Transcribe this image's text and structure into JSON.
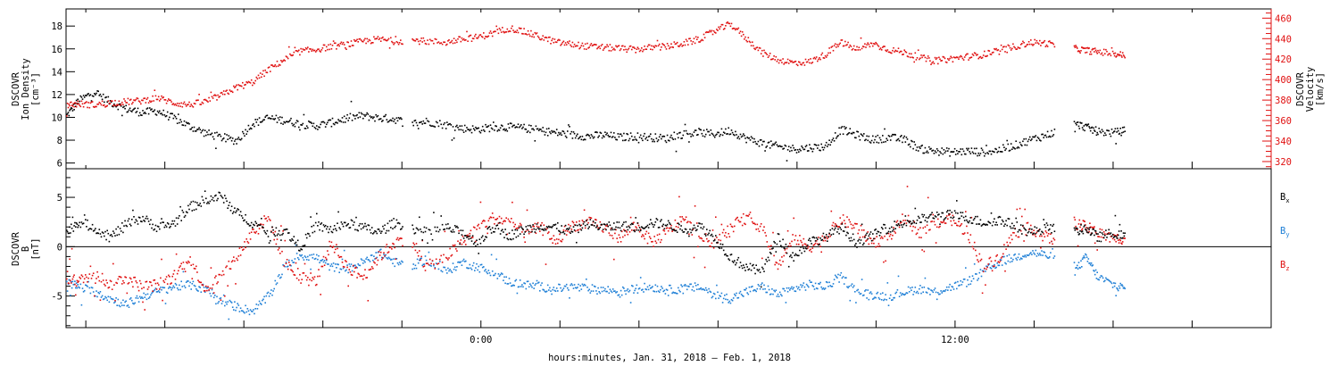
{
  "chart_data": [
    {
      "type": "scatter",
      "panel": "plasma",
      "ylabel": [
        "DSCOVR",
        "Ion Density",
        "[cm⁻³]"
      ],
      "ylim": [
        5.5,
        19.5
      ],
      "yticks": [
        6,
        8,
        10,
        12,
        14,
        16,
        18
      ],
      "y2label": [
        "DSCOVR",
        "Velocity",
        "[km/s]"
      ],
      "y2lim": [
        313,
        469
      ],
      "y2ticks": [
        320,
        340,
        360,
        380,
        400,
        420,
        440,
        460
      ],
      "y2_color": "#e01010",
      "series": [
        {
          "axis": "left",
          "color": "#000000",
          "x": [
            -10.5,
            -10.2,
            -9.8,
            -9.4,
            -9.0,
            -8.6,
            -8.2,
            -7.8,
            -7.4,
            -7.0,
            -6.6,
            -6.2,
            -5.8,
            -5.4,
            -5.0,
            -4.6,
            -4.2,
            -3.8,
            -3.4,
            -3.0,
            -2.6,
            -2.2,
            -1.8,
            -1.4,
            -0.9,
            -0.5,
            -0.1,
            0.3,
            0.7,
            1.1,
            1.5,
            1.9,
            2.3,
            2.7,
            3.1,
            3.5,
            3.9,
            4.3,
            4.7,
            5.1,
            5.5,
            5.9,
            6.3,
            6.7,
            7.1,
            7.5,
            7.9,
            8.3,
            8.7,
            9.1,
            9.5,
            9.9,
            10.3,
            10.7,
            11.1,
            11.5,
            11.9,
            12.3,
            12.7,
            13.1,
            13.5,
            13.9,
            14.3,
            14.7,
            15.0,
            15.3,
            15.6,
            16.0,
            16.3
          ],
          "y": [
            10.2,
            11.5,
            12.3,
            11.4,
            10.8,
            10.5,
            10.6,
            10.0,
            9.3,
            8.7,
            8.3,
            8.0,
            9.5,
            10.0,
            9.8,
            9.5,
            9.3,
            9.6,
            10.0,
            10.2,
            10.0,
            9.9,
            9.5,
            9.7,
            9.4,
            9.1,
            9.0,
            9.2,
            9.2,
            9.1,
            8.9,
            8.7,
            8.5,
            8.4,
            8.5,
            8.3,
            8.4,
            8.3,
            8.2,
            8.6,
            8.7,
            8.6,
            8.9,
            8.2,
            7.8,
            7.5,
            7.3,
            7.4,
            7.5,
            9.0,
            8.5,
            8.1,
            8.3,
            8.1,
            7.3,
            7.1,
            7.0,
            7.1,
            7.0,
            7.2,
            7.6,
            8.1,
            8.5,
            9.0,
            9.5,
            9.2,
            8.8,
            8.7,
            8.9
          ]
        },
        {
          "axis": "right",
          "color": "#e01010",
          "x": [
            -10.5,
            -10.2,
            -9.8,
            -9.4,
            -9.0,
            -8.6,
            -8.2,
            -7.8,
            -7.4,
            -7.0,
            -6.6,
            -6.2,
            -5.8,
            -5.4,
            -5.0,
            -4.6,
            -4.2,
            -3.8,
            -3.4,
            -3.0,
            -2.6,
            -2.2,
            -1.8,
            -1.4,
            -0.9,
            -0.5,
            -0.1,
            0.3,
            0.7,
            1.1,
            1.5,
            1.9,
            2.3,
            2.7,
            3.1,
            3.5,
            3.9,
            4.3,
            4.7,
            5.1,
            5.5,
            5.9,
            6.3,
            6.7,
            7.1,
            7.5,
            7.9,
            8.3,
            8.7,
            9.1,
            9.5,
            9.9,
            10.3,
            10.7,
            11.1,
            11.5,
            11.9,
            12.3,
            12.7,
            13.1,
            13.5,
            13.9,
            14.3,
            14.7,
            15.0,
            15.3,
            15.6,
            16.0,
            16.3
          ],
          "y": [
            376,
            377,
            376,
            378,
            379,
            380,
            383,
            378,
            376,
            379,
            385,
            393,
            398,
            410,
            420,
            428,
            430,
            433,
            435,
            438,
            440,
            438,
            439,
            438,
            437,
            440,
            442,
            446,
            451,
            447,
            442,
            437,
            435,
            433,
            432,
            431,
            430,
            432,
            433,
            436,
            440,
            448,
            455,
            441,
            427,
            420,
            417,
            418,
            425,
            437,
            430,
            436,
            430,
            427,
            422,
            419,
            421,
            423,
            425,
            429,
            433,
            437,
            436,
            433,
            431,
            429,
            428,
            426,
            424
          ]
        }
      ]
    },
    {
      "type": "scatter",
      "panel": "magnetic-field",
      "ylabel": [
        "DSCOVR",
        "B",
        "[nT]"
      ],
      "ylim": [
        -8.2,
        7.9
      ],
      "yticks": [
        -5,
        0,
        5
      ],
      "xlabel": "hours:minutes, Jan. 31, 2018 – Feb.  1, 2018",
      "xlim": [
        -10.5,
        20.0
      ],
      "xticks": [
        -8,
        -6,
        -4,
        -2,
        0,
        2,
        4,
        6,
        8,
        10,
        12,
        14,
        16,
        18
      ],
      "xticklabels": [
        {
          "x": 0,
          "label": "0:00"
        },
        {
          "x": 12,
          "label": "12:00"
        }
      ],
      "series": [
        {
          "name": "Bx",
          "color": "#000000",
          "x": [
            -10.5,
            -10.2,
            -9.8,
            -9.4,
            -9.0,
            -8.6,
            -8.2,
            -7.8,
            -7.4,
            -7.0,
            -6.6,
            -6.2,
            -5.8,
            -5.4,
            -5.0,
            -4.6,
            -4.2,
            -3.8,
            -3.4,
            -3.0,
            -2.6,
            -2.2,
            -1.8,
            -1.4,
            -0.9,
            -0.5,
            -0.1,
            0.3,
            0.7,
            1.1,
            1.5,
            1.9,
            2.3,
            2.7,
            3.1,
            3.5,
            3.9,
            4.3,
            4.7,
            5.1,
            5.5,
            5.9,
            6.3,
            6.7,
            7.1,
            7.5,
            7.9,
            8.3,
            8.7,
            9.1,
            9.5,
            9.9,
            10.3,
            10.7,
            11.1,
            11.5,
            11.9,
            12.3,
            12.7,
            13.1,
            13.5,
            13.9,
            14.3,
            14.7,
            15.0,
            15.3,
            15.6,
            16.0,
            16.3
          ],
          "y": [
            1.5,
            2.6,
            2.0,
            1.0,
            2.3,
            3.0,
            2.0,
            2.4,
            4.0,
            4.8,
            5.2,
            3.5,
            2.5,
            1.5,
            1.8,
            0.0,
            2.2,
            1.8,
            2.4,
            2.0,
            1.5,
            2.5,
            2.0,
            1.5,
            2.0,
            1.5,
            0.5,
            2.0,
            1.2,
            1.8,
            2.2,
            2.0,
            1.6,
            2.4,
            2.0,
            2.2,
            2.0,
            2.5,
            2.3,
            1.8,
            2.2,
            1.0,
            -1.0,
            -2.0,
            -2.5,
            1.0,
            -1.0,
            0.5,
            1.0,
            2.0,
            0.5,
            1.2,
            2.0,
            2.5,
            2.8,
            3.2,
            3.3,
            3.0,
            2.5,
            2.8,
            2.2,
            1.5,
            2.0,
            2.2,
            1.5,
            2.0,
            1.0,
            1.5,
            1.0
          ]
        },
        {
          "name": "By",
          "color": "#1e7fd6",
          "x": [
            -10.5,
            -10.2,
            -9.8,
            -9.4,
            -9.0,
            -8.6,
            -8.2,
            -7.8,
            -7.4,
            -7.0,
            -6.6,
            -6.2,
            -5.8,
            -5.4,
            -5.0,
            -4.6,
            -4.2,
            -3.8,
            -3.4,
            -3.0,
            -2.6,
            -2.2,
            -1.8,
            -1.4,
            -0.9,
            -0.5,
            -0.1,
            0.3,
            0.7,
            1.1,
            1.5,
            1.9,
            2.3,
            2.7,
            3.1,
            3.5,
            3.9,
            4.3,
            4.7,
            5.1,
            5.5,
            5.9,
            6.3,
            6.7,
            7.1,
            7.5,
            7.9,
            8.3,
            8.7,
            9.1,
            9.5,
            9.9,
            10.3,
            10.7,
            11.1,
            11.5,
            11.9,
            12.3,
            12.7,
            13.1,
            13.5,
            13.9,
            14.3,
            14.7,
            15.0,
            15.3,
            15.6,
            16.0,
            16.3
          ],
          "y": [
            -3.5,
            -4.0,
            -4.5,
            -5.2,
            -5.8,
            -5.0,
            -4.5,
            -4.0,
            -3.8,
            -4.2,
            -5.5,
            -6.0,
            -6.5,
            -5.0,
            -2.0,
            -0.8,
            -1.0,
            -2.0,
            -2.2,
            -1.5,
            -0.5,
            -1.5,
            -2.0,
            -1.2,
            -2.5,
            -1.5,
            -2.0,
            -2.5,
            -3.5,
            -3.8,
            -4.0,
            -4.2,
            -4.0,
            -4.2,
            -4.3,
            -4.5,
            -4.2,
            -4.0,
            -4.3,
            -4.2,
            -4.0,
            -4.8,
            -5.2,
            -4.5,
            -4.0,
            -4.8,
            -4.2,
            -3.8,
            -4.0,
            -3.0,
            -4.5,
            -4.8,
            -5.0,
            -4.5,
            -4.2,
            -4.5,
            -4.0,
            -3.5,
            -2.5,
            -1.5,
            -1.0,
            -0.5,
            -0.8,
            -1.5,
            -2.5,
            -1.0,
            -3.0,
            -3.8,
            -4.2
          ]
        },
        {
          "name": "Bz",
          "color": "#e01010",
          "x": [
            -10.5,
            -10.2,
            -9.8,
            -9.4,
            -9.0,
            -8.6,
            -8.2,
            -7.8,
            -7.4,
            -7.0,
            -6.6,
            -6.2,
            -5.8,
            -5.4,
            -5.0,
            -4.6,
            -4.2,
            -3.8,
            -3.4,
            -3.0,
            -2.6,
            -2.2,
            -1.8,
            -1.4,
            -0.9,
            -0.5,
            -0.1,
            0.3,
            0.7,
            1.1,
            1.5,
            1.9,
            2.3,
            2.7,
            3.1,
            3.5,
            3.9,
            4.3,
            4.7,
            5.1,
            5.5,
            5.9,
            6.3,
            6.7,
            7.1,
            7.5,
            7.9,
            8.3,
            8.7,
            9.1,
            9.5,
            9.9,
            10.3,
            10.7,
            11.1,
            11.5,
            11.9,
            12.3,
            12.7,
            13.1,
            13.5,
            13.9,
            14.3,
            14.7,
            15.0,
            15.3,
            15.6,
            16.0,
            16.3
          ],
          "y": [
            -3.0,
            -3.5,
            -2.5,
            -3.8,
            -3.0,
            -4.0,
            -3.8,
            -3.0,
            -1.0,
            -4.2,
            -3.0,
            -1.0,
            1.5,
            3.0,
            -1.5,
            -3.0,
            -3.5,
            0.5,
            -2.0,
            -3.0,
            -1.0,
            0.5,
            1.0,
            -2.0,
            -1.0,
            0.5,
            2.0,
            3.0,
            2.5,
            1.5,
            2.0,
            0.5,
            2.2,
            2.5,
            2.0,
            1.0,
            2.3,
            0.5,
            1.5,
            3.0,
            1.0,
            0.5,
            2.0,
            3.0,
            2.0,
            -2.0,
            1.0,
            0.0,
            1.0,
            2.8,
            2.0,
            0.5,
            1.0,
            3.0,
            1.5,
            2.5,
            2.8,
            1.5,
            -2.0,
            -1.0,
            1.5,
            2.0,
            1.0,
            0.5,
            2.5,
            2.0,
            1.5,
            0.8,
            1.0
          ]
        }
      ]
    }
  ]
}
